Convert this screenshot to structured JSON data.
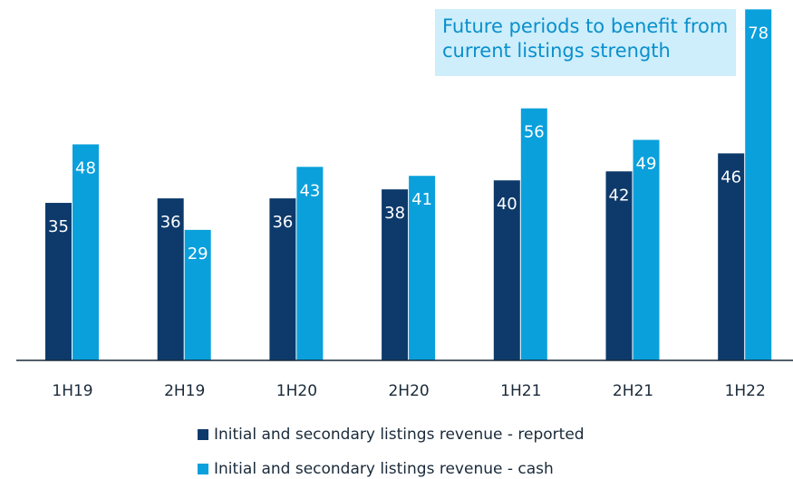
{
  "chart_data": {
    "type": "bar",
    "annotation": "Future periods to benefit from current listings strength",
    "categories": [
      "1H19",
      "2H19",
      "1H20",
      "2H20",
      "1H21",
      "2H21",
      "1H22"
    ],
    "series": [
      {
        "name": "Initial and secondary listings revenue - reported",
        "color": "#0d3a6b",
        "values": [
          35,
          36,
          36,
          38,
          40,
          42,
          46
        ]
      },
      {
        "name": "Initial and secondary listings revenue - cash",
        "color": "#0aa0dc",
        "values": [
          48,
          29,
          43,
          41,
          56,
          49,
          78
        ]
      }
    ]
  }
}
